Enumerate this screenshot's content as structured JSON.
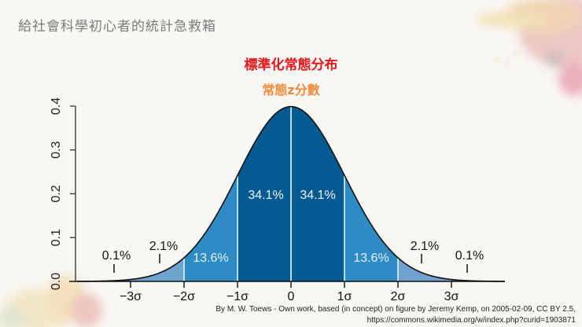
{
  "slide": {
    "title": "給社會科學初心者的統計急救箱"
  },
  "chart_data": {
    "type": "area",
    "title": "標準化常態分布",
    "subtitle": "常態z分數",
    "xlabel": "",
    "ylabel": "",
    "x_tick_labels": [
      "−3σ",
      "−2σ",
      "−1σ",
      "0",
      "1σ",
      "2σ",
      "3σ"
    ],
    "x_ticks": [
      -3,
      -2,
      -1,
      0,
      1,
      2,
      3
    ],
    "y_tick_labels": [
      "0.0",
      "0.1",
      "0.2",
      "0.3",
      "0.4"
    ],
    "y_ticks": [
      0.0,
      0.1,
      0.2,
      0.3,
      0.4
    ],
    "ylim": [
      0,
      0.4
    ],
    "xlim": [
      -4,
      4
    ],
    "grid": false,
    "curve": "standard normal pdf",
    "regions": [
      {
        "from": -4,
        "to": -3,
        "percent": "0.1%",
        "color": "#5a7fa8"
      },
      {
        "from": -3,
        "to": -2,
        "percent": "2.1%",
        "color": "#6fa2cf"
      },
      {
        "from": -2,
        "to": -1,
        "percent": "13.6%",
        "color": "#2e8bc3"
      },
      {
        "from": -1,
        "to": 0,
        "percent": "34.1%",
        "color": "#065a92"
      },
      {
        "from": 0,
        "to": 1,
        "percent": "34.1%",
        "color": "#065a92"
      },
      {
        "from": 1,
        "to": 2,
        "percent": "13.6%",
        "color": "#2e8bc3"
      },
      {
        "from": 2,
        "to": 3,
        "percent": "2.1%",
        "color": "#6fa2cf"
      },
      {
        "from": 3,
        "to": 4,
        "percent": "0.1%",
        "color": "#5a7fa8"
      }
    ],
    "labels": {
      "left_tail": "0.1%",
      "left_2": "2.1%",
      "left_13": "13.6%",
      "left_34": "34.1%",
      "right_34": "34.1%",
      "right_13": "13.6%",
      "right_2": "2.1%",
      "right_tail": "0.1%"
    }
  },
  "credit": {
    "line1": "By M. W. Toews - Own work, based (in concept) on figure by Jeremy Kemp, on 2005-02-09, CC BY 2.5,",
    "line2": "https://commons.wikimedia.org/w/index.php?curid=1903871"
  }
}
